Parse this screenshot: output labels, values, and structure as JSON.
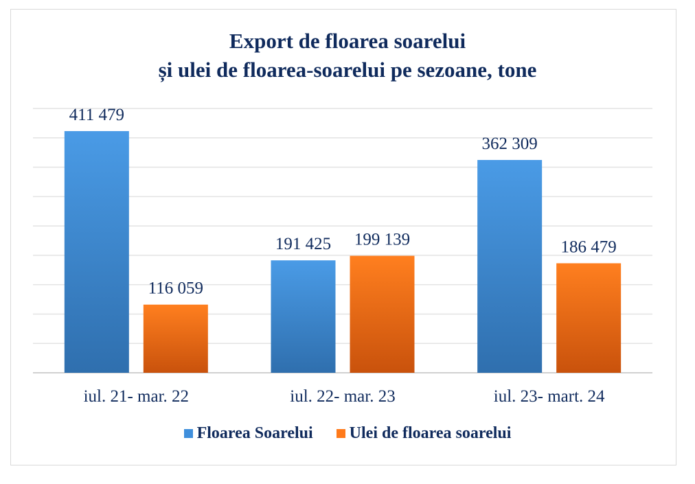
{
  "chart_data": {
    "type": "bar",
    "title_line1": "Export de floarea soarelui",
    "title_line2": "și ulei de floarea-soarelui pe sezoane, tone",
    "categories": [
      "iul. 21- mar. 22",
      "iul. 22- mar. 23",
      "iul. 23- mart. 24"
    ],
    "series": [
      {
        "name": "Floarea Soarelui",
        "values": [
          411479,
          191425,
          362309
        ],
        "labels": [
          "411 479",
          "191 425",
          "362 309"
        ],
        "color": "#3f8fdc",
        "color_dark": "#2f6fae"
      },
      {
        "name": "Ulei de floarea soarelui",
        "values": [
          116059,
          199139,
          186479
        ],
        "labels": [
          "116 059",
          "199 139",
          "186 479"
        ],
        "color": "#ff7a1a",
        "color_dark": "#c9520c"
      }
    ],
    "ylim": [
      0,
      450000
    ],
    "grid": true,
    "legend": "bottom"
  }
}
